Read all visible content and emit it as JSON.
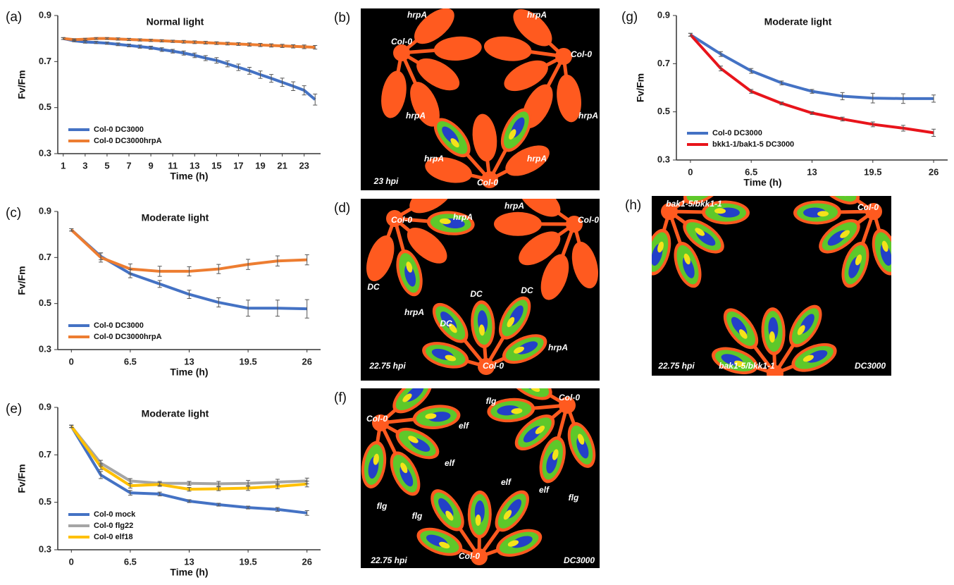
{
  "chart_data": [
    {
      "type": "line",
      "panel": "(a)",
      "title": "Normal light",
      "xlabel": "Time (h)",
      "ylabel": "Fv/Fm",
      "x": [
        1,
        2,
        3,
        4,
        5,
        6,
        7,
        8,
        9,
        10,
        11,
        12,
        13,
        14,
        15,
        16,
        17,
        18,
        19,
        20,
        21,
        22,
        23,
        24
      ],
      "xlim": [
        0.5,
        24.5
      ],
      "xticks": [
        1,
        3,
        5,
        7,
        9,
        11,
        13,
        15,
        17,
        19,
        21,
        23
      ],
      "ylim": [
        0.3,
        0.9
      ],
      "yticks": [
        0.3,
        0.5,
        0.7,
        0.9
      ],
      "series": [
        {
          "name": "Col-0 DC3000",
          "color": "#4472c4",
          "values": [
            0.8,
            0.79,
            0.785,
            0.783,
            0.78,
            0.775,
            0.77,
            0.765,
            0.76,
            0.752,
            0.745,
            0.737,
            0.727,
            0.715,
            0.705,
            0.69,
            0.675,
            0.66,
            0.643,
            0.627,
            0.61,
            0.593,
            0.575,
            0.535
          ],
          "errors": [
            0.004,
            0.004,
            0.005,
            0.005,
            0.005,
            0.006,
            0.006,
            0.007,
            0.007,
            0.008,
            0.008,
            0.009,
            0.01,
            0.011,
            0.012,
            0.013,
            0.014,
            0.015,
            0.016,
            0.017,
            0.018,
            0.019,
            0.02,
            0.024
          ]
        },
        {
          "name": "Col-0 DC3000hrpA",
          "color": "#ed7d31",
          "values": [
            0.8,
            0.795,
            0.797,
            0.8,
            0.8,
            0.798,
            0.796,
            0.794,
            0.792,
            0.79,
            0.788,
            0.786,
            0.784,
            0.782,
            0.78,
            0.778,
            0.776,
            0.774,
            0.772,
            0.77,
            0.768,
            0.766,
            0.764,
            0.762
          ],
          "errors": [
            0.004,
            0.004,
            0.004,
            0.004,
            0.004,
            0.005,
            0.005,
            0.005,
            0.005,
            0.005,
            0.005,
            0.006,
            0.006,
            0.006,
            0.006,
            0.006,
            0.006,
            0.007,
            0.007,
            0.007,
            0.007,
            0.007,
            0.008,
            0.008
          ]
        }
      ]
    },
    {
      "type": "line",
      "panel": "(c)",
      "title": "Moderate light",
      "xlabel": "Time (h)",
      "ylabel": "Fv/Fm",
      "x": [
        0,
        3.25,
        6.5,
        9.75,
        13,
        16.25,
        19.5,
        22.75,
        26
      ],
      "xlim": [
        -1.5,
        27.5
      ],
      "xticks": [
        0,
        6.5,
        13,
        19.5,
        26
      ],
      "ylim": [
        0.3,
        0.9
      ],
      "yticks": [
        0.3,
        0.5,
        0.7,
        0.9
      ],
      "series": [
        {
          "name": "Col-0 DC3000",
          "color": "#4472c4",
          "values": [
            0.82,
            0.705,
            0.63,
            0.585,
            0.54,
            0.505,
            0.48,
            0.48,
            0.477
          ],
          "errors": [
            0.005,
            0.015,
            0.018,
            0.015,
            0.018,
            0.02,
            0.035,
            0.035,
            0.04
          ]
        },
        {
          "name": "Col-0 DC3000hrpA",
          "color": "#ed7d31",
          "values": [
            0.82,
            0.7,
            0.65,
            0.64,
            0.64,
            0.65,
            0.67,
            0.685,
            0.69
          ],
          "errors": [
            0.005,
            0.02,
            0.022,
            0.022,
            0.02,
            0.02,
            0.022,
            0.022,
            0.022
          ]
        }
      ]
    },
    {
      "type": "line",
      "panel": "(e)",
      "title": "Moderate light",
      "xlabel": "Time (h)",
      "ylabel": "Fv/Fm",
      "x": [
        0,
        3.25,
        6.5,
        9.75,
        13,
        16.25,
        19.5,
        22.75,
        26
      ],
      "xlim": [
        -1.5,
        27.5
      ],
      "xticks": [
        0,
        6.5,
        13,
        19.5,
        26
      ],
      "ylim": [
        0.3,
        0.9
      ],
      "yticks": [
        0.3,
        0.5,
        0.7,
        0.9
      ],
      "series": [
        {
          "name": "Col-0 mock",
          "color": "#4472c4",
          "values": [
            0.82,
            0.615,
            0.54,
            0.535,
            0.505,
            0.49,
            0.478,
            0.47,
            0.455
          ],
          "errors": [
            0.005,
            0.015,
            0.01,
            0.008,
            0.006,
            0.006,
            0.006,
            0.008,
            0.01
          ]
        },
        {
          "name": "Col-0 flg22",
          "color": "#a5a5a5",
          "values": [
            0.82,
            0.665,
            0.59,
            0.58,
            0.58,
            0.578,
            0.58,
            0.585,
            0.59
          ],
          "errors": [
            0.005,
            0.012,
            0.01,
            0.008,
            0.008,
            0.01,
            0.012,
            0.012,
            0.012
          ]
        },
        {
          "name": "Col-0 elf18",
          "color": "#ffc000",
          "values": [
            0.82,
            0.65,
            0.57,
            0.575,
            0.555,
            0.557,
            0.56,
            0.567,
            0.577
          ],
          "errors": [
            0.005,
            0.012,
            0.01,
            0.008,
            0.008,
            0.008,
            0.01,
            0.01,
            0.012
          ]
        }
      ]
    },
    {
      "type": "line",
      "panel": "(g)",
      "title": "Moderate light",
      "xlabel": "Time (h)",
      "ylabel": "Fv/Fm",
      "x": [
        0,
        3.25,
        6.5,
        9.75,
        13,
        16.25,
        19.5,
        22.75,
        26
      ],
      "xlim": [
        -1.5,
        27.5
      ],
      "xticks": [
        0,
        6.5,
        13,
        19.5,
        26
      ],
      "ylim": [
        0.3,
        0.9
      ],
      "yticks": [
        0.3,
        0.5,
        0.7,
        0.9
      ],
      "series": [
        {
          "name": "Col-0 DC3000",
          "color": "#4472c4",
          "values": [
            0.82,
            0.74,
            0.67,
            0.62,
            0.585,
            0.565,
            0.557,
            0.555,
            0.555
          ],
          "errors": [
            0.006,
            0.01,
            0.01,
            0.008,
            0.008,
            0.015,
            0.02,
            0.02,
            0.015
          ]
        },
        {
          "name": "bkk1-1/bak1-5 DC3000",
          "color": "#e8141b",
          "values": [
            0.82,
            0.68,
            0.585,
            0.535,
            0.495,
            0.47,
            0.448,
            0.432,
            0.413
          ],
          "errors": [
            0.006,
            0.01,
            0.008,
            0.006,
            0.006,
            0.008,
            0.01,
            0.012,
            0.015
          ]
        }
      ]
    }
  ],
  "images": [
    {
      "panel": "(b)",
      "labels": [
        "hrpA",
        "hrpA",
        "Col-0",
        "Col-0",
        "hrpA",
        "hrpA",
        "hrpA",
        "hrpA",
        "Col-0",
        "23  hpi"
      ]
    },
    {
      "panel": "(d)",
      "labels": [
        "Col-0",
        "hrpA",
        "hrpA",
        "Col-0",
        "DC",
        "DC",
        "DC",
        "DC",
        "hrpA",
        "hrpA",
        "Col-0",
        "22.75  hpi"
      ]
    },
    {
      "panel": "(f)",
      "labels": [
        "Col-0",
        "flg",
        "Col-0",
        "elf",
        "elf",
        "elf",
        "elf",
        "flg",
        "flg",
        "flg",
        "Col-0",
        "22.75  hpi",
        "DC3000"
      ]
    },
    {
      "panel": "(h)",
      "labels": [
        "bak1-5/bkk1-1",
        "Col-0",
        "22.75  hpi",
        "bak1-5/bkk1-1",
        "DC3000"
      ]
    }
  ]
}
